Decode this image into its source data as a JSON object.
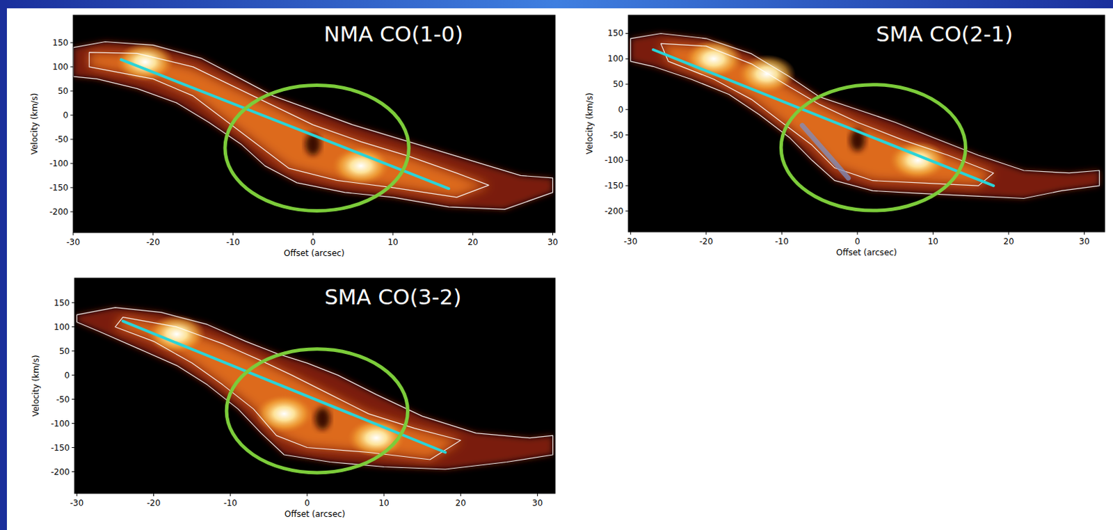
{
  "chart_data": [
    {
      "type": "contour",
      "title": "NMA CO(1-0)",
      "x_label": "Offset (arcsec)",
      "y_label": "Velocity (km/s)",
      "xlim": [
        -30,
        30.3
      ],
      "ylim": [
        -243,
        207
      ],
      "xticks": [
        -30,
        -20,
        -10,
        0,
        10,
        20,
        30
      ],
      "yticks": [
        -200,
        -150,
        -100,
        -50,
        0,
        50,
        100,
        150
      ],
      "contours": [
        {
          "x": [
            -30,
            -26,
            -20,
            -14,
            -9,
            -5,
            0,
            5,
            10,
            16,
            22,
            26,
            30,
            30,
            24,
            17,
            10,
            4,
            -2,
            -6,
            -9,
            -13,
            -17,
            -22,
            -27,
            -30
          ],
          "y": [
            140,
            152,
            145,
            118,
            75,
            40,
            10,
            -20,
            -45,
            -75,
            -105,
            -125,
            -130,
            -160,
            -195,
            -190,
            -170,
            -160,
            -140,
            -105,
            -60,
            -15,
            25,
            55,
            75,
            80
          ]
        },
        {
          "x": [
            -28,
            -22,
            -15,
            -10,
            -5,
            0,
            6,
            12,
            18,
            22,
            18,
            10,
            3,
            -3,
            -7,
            -11,
            -15,
            -20,
            -28
          ],
          "y": [
            130,
            128,
            100,
            60,
            20,
            -20,
            -55,
            -85,
            -120,
            -145,
            -170,
            -150,
            -135,
            -110,
            -60,
            -10,
            40,
            75,
            100
          ]
        }
      ],
      "peaks": {
        "x": [
          -21,
          6
        ],
        "y": [
          110,
          -105
        ]
      },
      "minima": {
        "x": [
          0
        ],
        "y": [
          -60
        ]
      },
      "lines": [
        {
          "x": [
            -24,
            17
          ],
          "y": [
            115,
            -152
          ],
          "color": "#2ad4d8"
        }
      ],
      "ellipse": {
        "x": 0.5,
        "y": -68,
        "rx": 11.5,
        "ry": 130,
        "color": "#7ccc3a"
      }
    },
    {
      "type": "contour",
      "title": "SMA CO(2-1)",
      "x_label": "Offset (arcsec)",
      "y_label": "Velocity (km/s)",
      "xlim": [
        -30.3,
        32.7
      ],
      "ylim": [
        -241,
        186
      ],
      "xticks": [
        -30,
        -20,
        -10,
        0,
        10,
        20,
        30
      ],
      "yticks": [
        -200,
        -150,
        -100,
        -50,
        0,
        50,
        100,
        150
      ],
      "contours": [
        {
          "x": [
            -30,
            -26,
            -20,
            -14,
            -9,
            -5,
            0,
            5,
            10,
            16,
            22,
            28,
            32,
            32,
            27,
            22,
            15,
            8,
            2,
            -3,
            -6,
            -9,
            -13,
            -17,
            -22,
            -27,
            -30
          ],
          "y": [
            140,
            150,
            140,
            110,
            65,
            25,
            0,
            -25,
            -55,
            -90,
            -120,
            -125,
            -120,
            -150,
            -160,
            -175,
            -170,
            -165,
            -160,
            -140,
            -100,
            -55,
            -10,
            30,
            60,
            85,
            95
          ]
        },
        {
          "x": [
            -26,
            -20,
            -14,
            -9,
            -5,
            0,
            6,
            12,
            18,
            16,
            9,
            2,
            -3,
            -6,
            -10,
            -14,
            -19,
            -25
          ],
          "y": [
            130,
            125,
            90,
            45,
            10,
            -25,
            -60,
            -90,
            -125,
            -150,
            -145,
            -140,
            -115,
            -70,
            -25,
            20,
            60,
            95
          ]
        }
      ],
      "peaks": {
        "x": [
          -19,
          -12,
          8
        ],
        "y": [
          100,
          70,
          -100
        ]
      },
      "minima": {
        "x": [
          0
        ],
        "y": [
          -60
        ]
      },
      "lines": [
        {
          "x": [
            -27,
            18
          ],
          "y": [
            118,
            -150
          ],
          "color": "#2ad4d8"
        },
        {
          "x": [
            -7.3,
            -1.2
          ],
          "y": [
            -31,
            -135
          ],
          "color": "#7f8fc0"
        }
      ],
      "ellipse": {
        "x": 2.1,
        "y": -75,
        "rx": 12.2,
        "ry": 124,
        "color": "#7ccc3a"
      }
    },
    {
      "type": "contour",
      "title": "SMA CO(3-2)",
      "x_label": "Offset (arcsec)",
      "y_label": "Velocity (km/s)",
      "xlim": [
        -30.3,
        32.3
      ],
      "ylim": [
        -245,
        201
      ],
      "xticks": [
        -30,
        -20,
        -10,
        0,
        10,
        20,
        30
      ],
      "yticks": [
        -200,
        -150,
        -100,
        -50,
        0,
        50,
        100,
        150
      ],
      "contours": [
        {
          "x": [
            -30,
            -25,
            -19,
            -13,
            -8,
            -4,
            0,
            4,
            9,
            15,
            22,
            29,
            32,
            32,
            26,
            18,
            10,
            3,
            -3,
            -6,
            -9,
            -13,
            -17,
            -22,
            -27,
            -30
          ],
          "y": [
            125,
            140,
            130,
            105,
            70,
            45,
            25,
            0,
            -40,
            -85,
            -120,
            -130,
            -125,
            -165,
            -180,
            -195,
            -190,
            -180,
            -165,
            -120,
            -70,
            -20,
            20,
            55,
            90,
            110
          ]
        },
        {
          "x": [
            -24,
            -17,
            -11,
            -6,
            -2,
            3,
            8,
            14,
            20,
            16,
            8,
            0,
            -4,
            -7,
            -11,
            -15,
            -20,
            -25
          ],
          "y": [
            120,
            100,
            65,
            30,
            0,
            -40,
            -80,
            -110,
            -135,
            -175,
            -160,
            -150,
            -125,
            -70,
            -20,
            25,
            70,
            100
          ]
        }
      ],
      "peaks": {
        "x": [
          -17,
          -3,
          9
        ],
        "y": [
          85,
          -80,
          -130
        ]
      },
      "minima": {
        "x": [
          2
        ],
        "y": [
          -90
        ]
      },
      "lines": [
        {
          "x": [
            -24,
            18
          ],
          "y": [
            112,
            -160
          ],
          "color": "#2ad4d8"
        }
      ],
      "ellipse": {
        "x": 1.3,
        "y": -74,
        "rx": 11.8,
        "ry": 128,
        "color": "#7ccc3a"
      }
    }
  ]
}
